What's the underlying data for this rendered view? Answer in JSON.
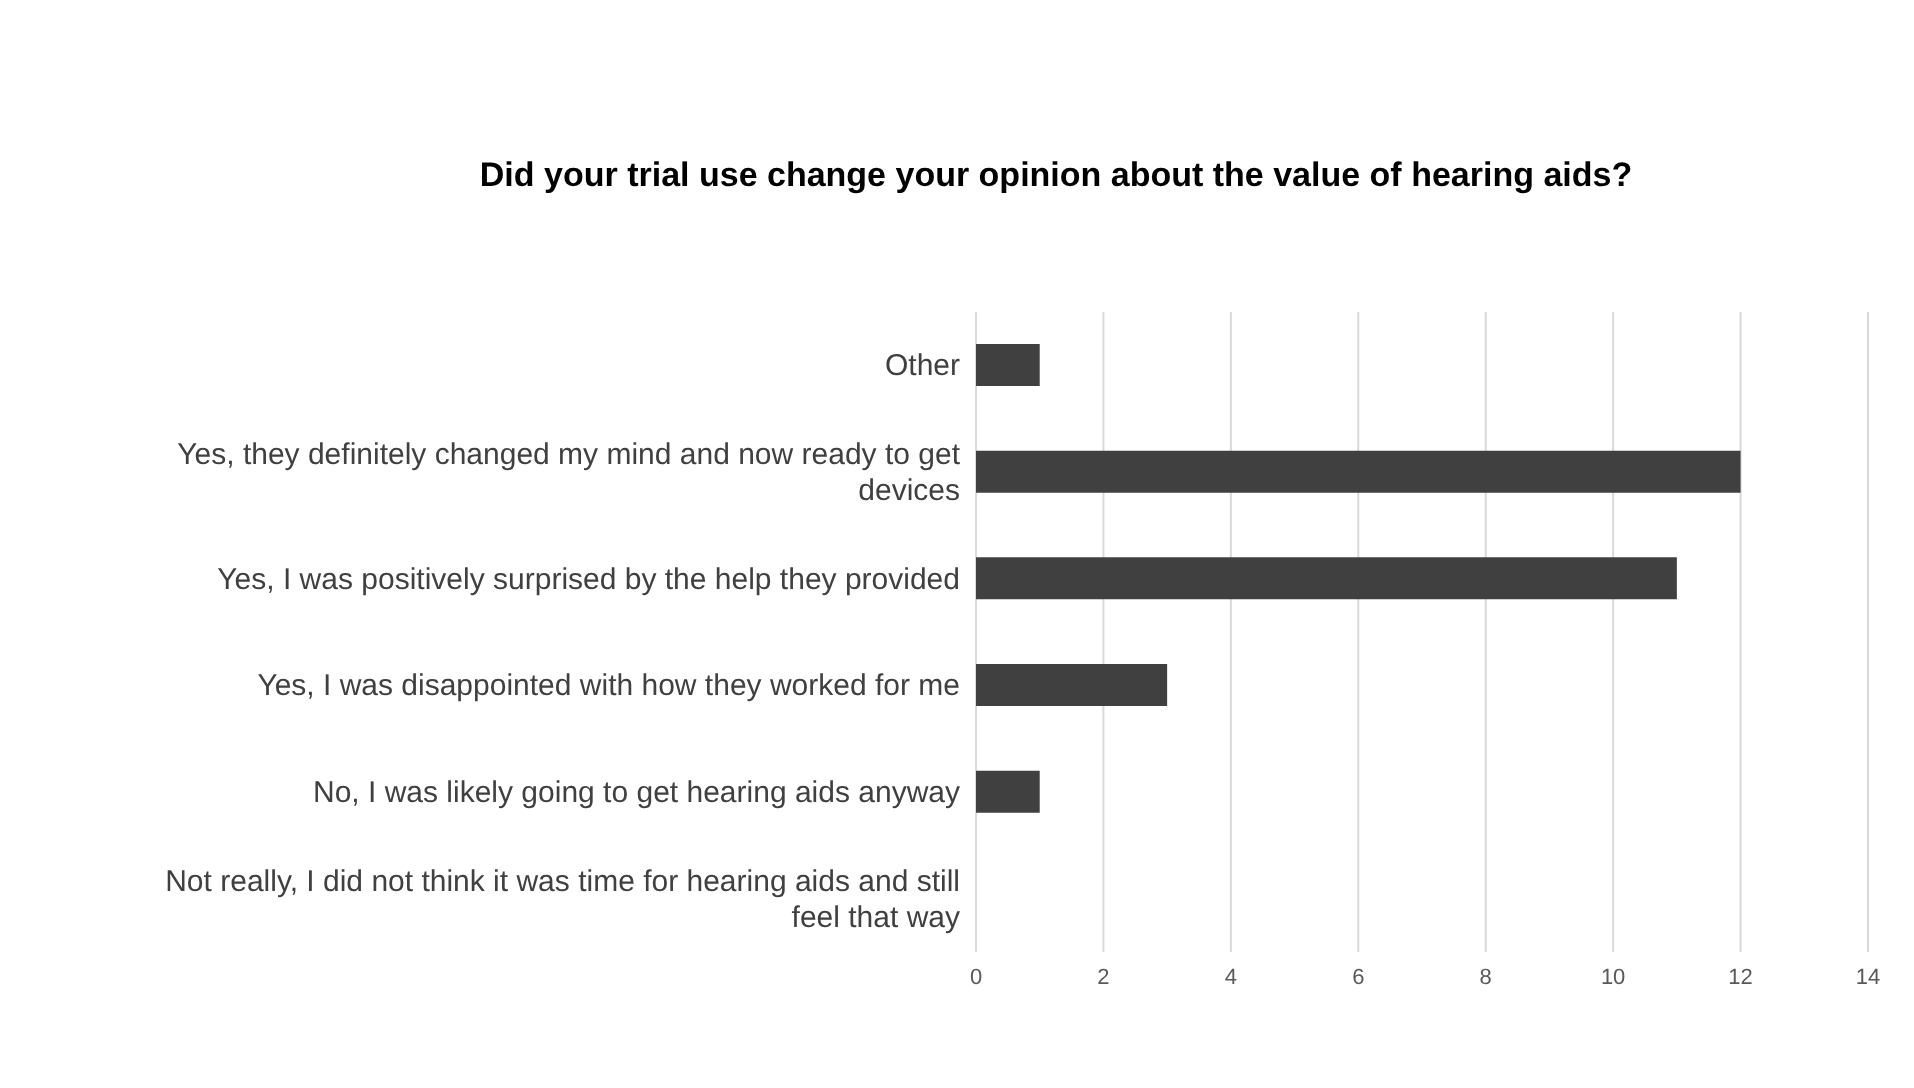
{
  "chart_data": {
    "type": "bar",
    "orientation": "horizontal",
    "title": "Did your trial use change your opinion about the value of hearing aids?",
    "categories": [
      "Other",
      "Yes, they definitely changed my mind and now ready to get devices",
      "Yes, I was positively surprised by the help they provided",
      "Yes, I was disappointed with how they worked for me",
      "No, I was likely going to get hearing aids anyway",
      "Not really, I did not think it was time for hearing aids and still feel that way"
    ],
    "values": [
      1,
      12,
      11,
      3,
      1,
      0
    ],
    "color": "#404040",
    "xlim": [
      0,
      14
    ],
    "xticks": [
      0,
      2,
      4,
      6,
      8,
      10,
      12,
      14
    ],
    "grid": "x"
  }
}
